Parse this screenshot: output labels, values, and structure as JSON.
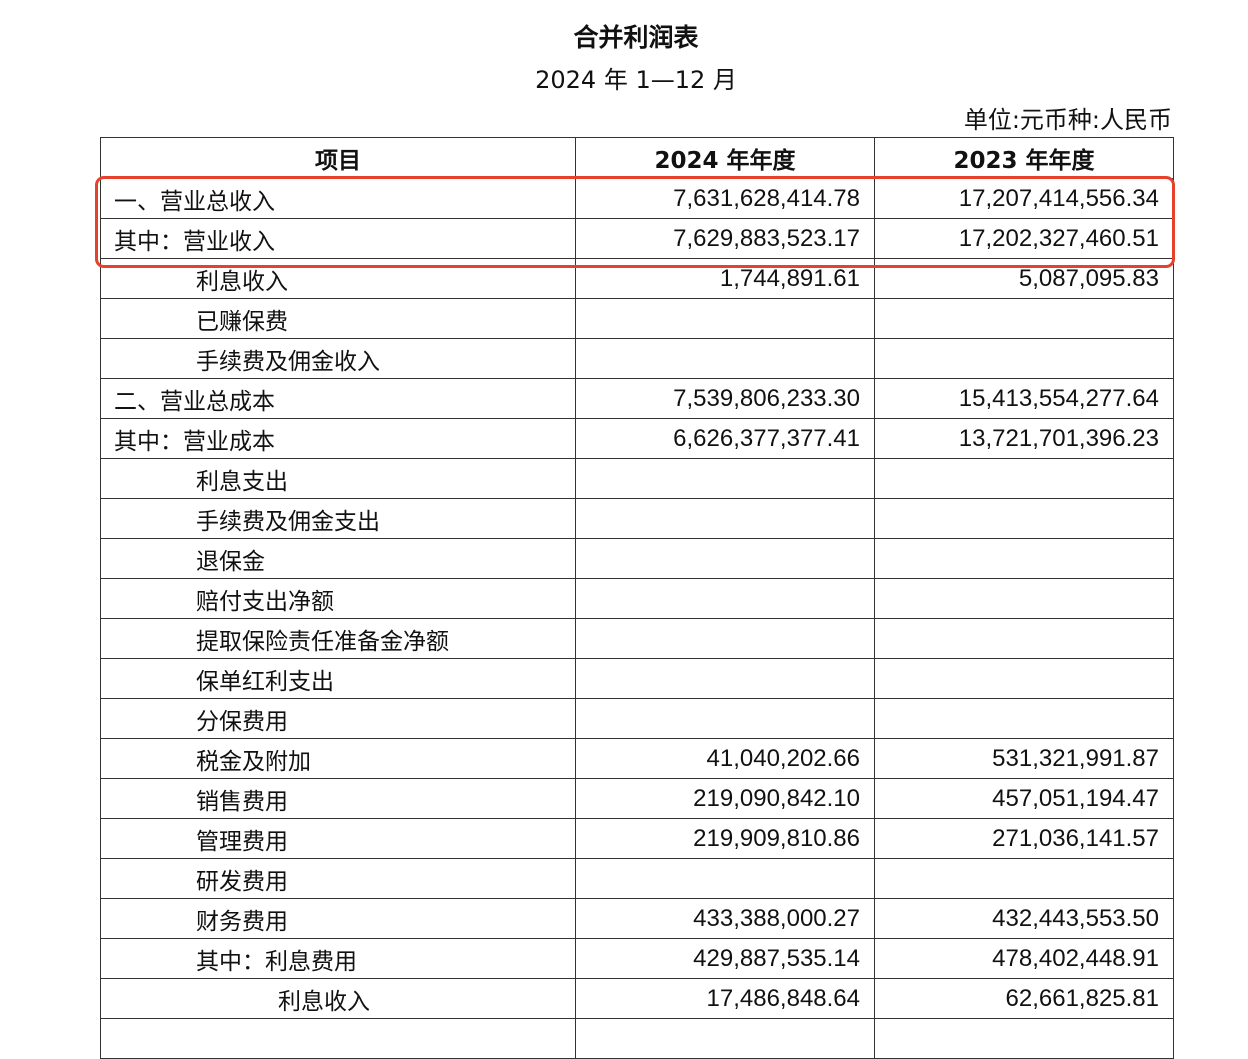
{
  "title": "合并利润表",
  "period": "2024 年 1—12 月",
  "unit": "单位:元币种:人民币",
  "highlight_color": "#e5412d",
  "columns": [
    "项目",
    "2024 年年度",
    "2023 年年度"
  ],
  "rows": [
    {
      "item": "一、营业总收入",
      "level": 0,
      "y2024": "7,631,628,414.78",
      "y2023": "17,207,414,556.34",
      "highlighted": true
    },
    {
      "item": "其中：营业收入",
      "level": 0,
      "y2024": "7,629,883,523.17",
      "y2023": "17,202,327,460.51",
      "highlighted": true
    },
    {
      "item": "利息收入",
      "level": 1,
      "y2024": "1,744,891.61",
      "y2023": "5,087,095.83"
    },
    {
      "item": "已赚保费",
      "level": 1,
      "y2024": "",
      "y2023": ""
    },
    {
      "item": "手续费及佣金收入",
      "level": 1,
      "y2024": "",
      "y2023": ""
    },
    {
      "item": "二、营业总成本",
      "level": 0,
      "y2024": "7,539,806,233.30",
      "y2023": "15,413,554,277.64"
    },
    {
      "item": "其中：营业成本",
      "level": 0,
      "y2024": "6,626,377,377.41",
      "y2023": "13,721,701,396.23"
    },
    {
      "item": "利息支出",
      "level": 1,
      "y2024": "",
      "y2023": ""
    },
    {
      "item": "手续费及佣金支出",
      "level": 1,
      "y2024": "",
      "y2023": ""
    },
    {
      "item": "退保金",
      "level": 1,
      "y2024": "",
      "y2023": ""
    },
    {
      "item": "赔付支出净额",
      "level": 1,
      "y2024": "",
      "y2023": ""
    },
    {
      "item": "提取保险责任准备金净额",
      "level": 1,
      "y2024": "",
      "y2023": ""
    },
    {
      "item": "保单红利支出",
      "level": 1,
      "y2024": "",
      "y2023": ""
    },
    {
      "item": "分保费用",
      "level": 1,
      "y2024": "",
      "y2023": ""
    },
    {
      "item": "税金及附加",
      "level": 1,
      "y2024": "41,040,202.66",
      "y2023": "531,321,991.87"
    },
    {
      "item": "销售费用",
      "level": 1,
      "y2024": "219,090,842.10",
      "y2023": "457,051,194.47"
    },
    {
      "item": "管理费用",
      "level": 1,
      "y2024": "219,909,810.86",
      "y2023": "271,036,141.57"
    },
    {
      "item": "研发费用",
      "level": 1,
      "y2024": "",
      "y2023": ""
    },
    {
      "item": "财务费用",
      "level": 1,
      "y2024": "433,388,000.27",
      "y2023": "432,443,553.50"
    },
    {
      "item": "其中：利息费用",
      "level": 1,
      "y2024": "429,887,535.14",
      "y2023": "478,402,448.91"
    },
    {
      "item": "利息收入",
      "level": 2,
      "y2024": "17,486,848.64",
      "y2023": "62,661,825.81"
    },
    {
      "item": "",
      "level": 1,
      "y2024": "",
      "y2023": ""
    }
  ]
}
